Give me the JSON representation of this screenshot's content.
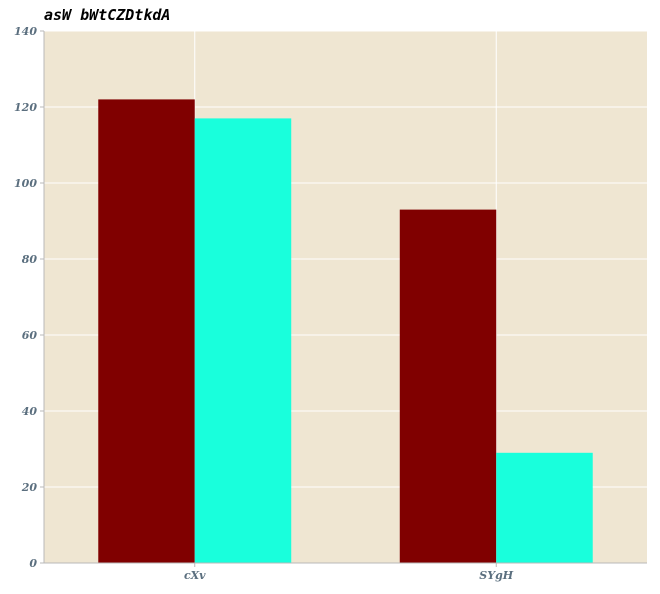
{
  "chart_data": {
    "type": "bar",
    "title": "asW bWtCZDtkdA",
    "xlabel": "",
    "ylabel": "",
    "categories": [
      "cXv",
      "SYgH"
    ],
    "series": [
      {
        "values": [
          122,
          93
        ],
        "color": "#800000"
      },
      {
        "values": [
          117,
          29
        ],
        "color": "#19ffdc"
      }
    ],
    "ylim": [
      0,
      140
    ],
    "yticks": [
      "0",
      "20",
      "40",
      "60",
      "80",
      "100",
      "120",
      "140"
    ],
    "grid": true,
    "background": "#efe6d2",
    "legend": "none"
  }
}
